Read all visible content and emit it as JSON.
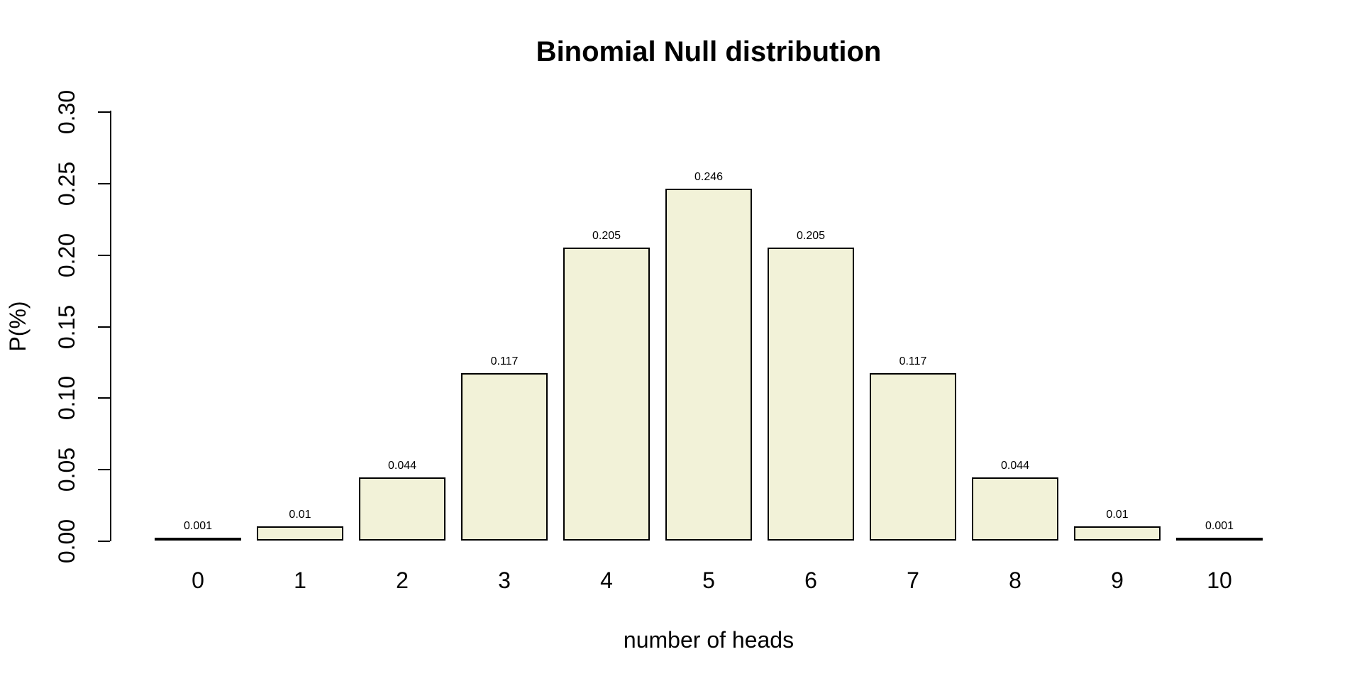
{
  "chart_data": {
    "type": "bar",
    "title": "Binomial Null distribution",
    "xlabel": "number of heads",
    "ylabel": "P(%)",
    "categories": [
      "0",
      "1",
      "2",
      "3",
      "4",
      "5",
      "6",
      "7",
      "8",
      "9",
      "10"
    ],
    "values": [
      0.001,
      0.01,
      0.044,
      0.117,
      0.205,
      0.246,
      0.205,
      0.117,
      0.044,
      0.01,
      0.001
    ],
    "bar_labels": [
      "0.001",
      "0.01",
      "0.044",
      "0.117",
      "0.205",
      "0.246",
      "0.205",
      "0.117",
      "0.044",
      "0.01",
      "0.001"
    ],
    "yticks": {
      "values": [
        0.0,
        0.05,
        0.1,
        0.15,
        0.2,
        0.25,
        0.3
      ],
      "labels": [
        "0.00",
        "0.05",
        "0.10",
        "0.15",
        "0.20",
        "0.25",
        "0.30"
      ]
    },
    "ylim": [
      0,
      0.3
    ],
    "grid": false,
    "legend": null,
    "colors": {
      "bar_fill": "#F2F2D8",
      "bar_border": "#000000",
      "axis": "#000000",
      "text": "#000000",
      "background": "#FFFFFF"
    }
  }
}
